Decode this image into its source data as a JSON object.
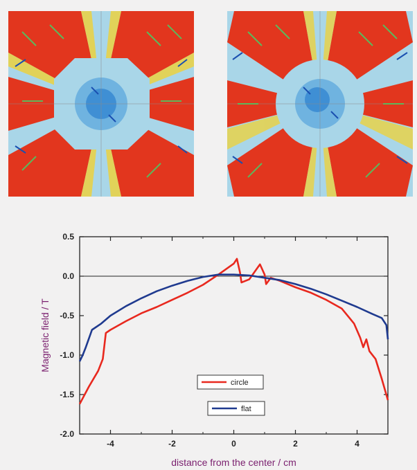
{
  "figure": {
    "left_map": {
      "description_icon": "field-map-icon"
    },
    "right_map": {
      "description_icon": "field-map-icon"
    }
  },
  "colors": {
    "circle": "#e8281e",
    "flat": "#1f3a8f",
    "axis_text": "#7a1f6e",
    "map_red": "#e2361e",
    "map_blue": "#3f8fd4",
    "map_light": "#a9d6e8",
    "map_yellow": "#e8d24a",
    "arrow_green": "#5cb85c",
    "arrow_blue": "#1a4fb0"
  },
  "chart_data": {
    "type": "line",
    "title": "",
    "xlabel": "distance from the center / cm",
    "ylabel": "Magnetic field / T",
    "xlim": [
      -5,
      5
    ],
    "ylim": [
      -2.0,
      0.5
    ],
    "xticks": [
      -4,
      -2,
      0,
      2,
      4
    ],
    "xtick_labels": [
      "-4",
      "-2",
      "0",
      "2",
      "4"
    ],
    "yticks": [
      0.5,
      0.0,
      -0.5,
      -1.0,
      -1.5,
      -2.0
    ],
    "ytick_labels": [
      "0.5",
      "0.0",
      "-0.5",
      "-1.0",
      "-1.5",
      "-2.0"
    ],
    "zero_line": true,
    "grid": false,
    "legend_position": "lower-center",
    "series": [
      {
        "name": "circle",
        "color": "#e8281e",
        "points": [
          [
            -5.0,
            -1.62
          ],
          [
            -4.7,
            -1.4
          ],
          [
            -4.4,
            -1.2
          ],
          [
            -4.25,
            -1.05
          ],
          [
            -4.15,
            -0.72
          ],
          [
            -4.0,
            -0.68
          ],
          [
            -3.5,
            -0.57
          ],
          [
            -3.0,
            -0.47
          ],
          [
            -2.5,
            -0.39
          ],
          [
            -2.0,
            -0.3
          ],
          [
            -1.5,
            -0.21
          ],
          [
            -1.0,
            -0.11
          ],
          [
            -0.5,
            0.02
          ],
          [
            0.0,
            0.16
          ],
          [
            0.1,
            0.22
          ],
          [
            0.2,
            0.05
          ],
          [
            0.25,
            -0.08
          ],
          [
            0.5,
            -0.04
          ],
          [
            0.85,
            0.15
          ],
          [
            1.0,
            0.02
          ],
          [
            1.05,
            -0.1
          ],
          [
            1.2,
            -0.02
          ],
          [
            1.5,
            -0.06
          ],
          [
            2.0,
            -0.14
          ],
          [
            2.5,
            -0.21
          ],
          [
            3.0,
            -0.3
          ],
          [
            3.5,
            -0.41
          ],
          [
            3.9,
            -0.6
          ],
          [
            4.1,
            -0.78
          ],
          [
            4.2,
            -0.9
          ],
          [
            4.3,
            -0.8
          ],
          [
            4.4,
            -0.95
          ],
          [
            4.6,
            -1.05
          ],
          [
            4.8,
            -1.3
          ],
          [
            5.0,
            -1.57
          ]
        ]
      },
      {
        "name": "flat",
        "color": "#1f3a8f",
        "points": [
          [
            -5.0,
            -1.08
          ],
          [
            -4.9,
            -1.0
          ],
          [
            -4.8,
            -0.9
          ],
          [
            -4.6,
            -0.68
          ],
          [
            -4.3,
            -0.6
          ],
          [
            -4.0,
            -0.5
          ],
          [
            -3.5,
            -0.38
          ],
          [
            -3.0,
            -0.28
          ],
          [
            -2.5,
            -0.19
          ],
          [
            -2.0,
            -0.12
          ],
          [
            -1.5,
            -0.06
          ],
          [
            -1.0,
            -0.01
          ],
          [
            -0.5,
            0.02
          ],
          [
            0.0,
            0.02
          ],
          [
            0.5,
            0.01
          ],
          [
            1.0,
            -0.02
          ],
          [
            1.5,
            -0.05
          ],
          [
            2.0,
            -0.1
          ],
          [
            2.5,
            -0.16
          ],
          [
            3.0,
            -0.23
          ],
          [
            3.5,
            -0.31
          ],
          [
            4.0,
            -0.39
          ],
          [
            4.5,
            -0.48
          ],
          [
            4.8,
            -0.53
          ],
          [
            4.95,
            -0.62
          ],
          [
            5.0,
            -0.8
          ]
        ]
      }
    ]
  }
}
